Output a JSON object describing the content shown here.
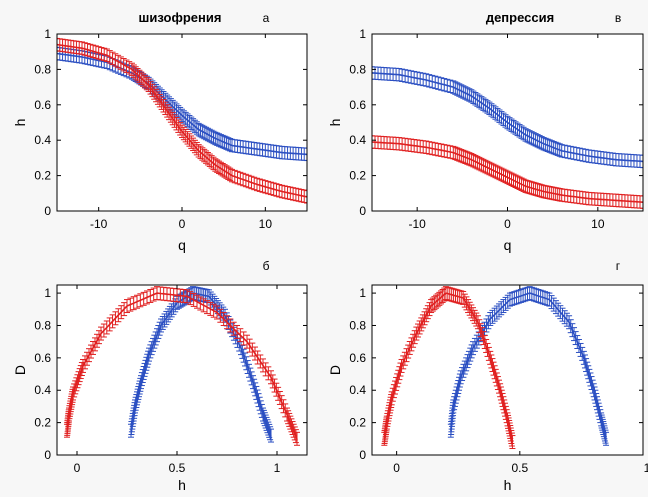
{
  "chart_data": [
    {
      "id": "a",
      "type": "line",
      "title": "шизофрения",
      "panel_label": "а",
      "xlabel": "q",
      "ylabel": "h",
      "xlim": [
        -15,
        15
      ],
      "ylim": [
        0,
        1
      ],
      "xticks": [
        -10,
        0,
        10
      ],
      "xtick_labels": [
        "-10",
        "0",
        "10"
      ],
      "yticks": [
        0,
        0.2,
        0.4,
        0.6,
        0.8,
        1
      ],
      "ytick_labels": [
        "0",
        "0.2",
        "0.4",
        "0.6",
        "0.8",
        "1"
      ],
      "grid": false,
      "error_bars": true,
      "series": [
        {
          "color": "#2b4fc2",
          "err": 0.035,
          "x": [
            -15,
            -12,
            -9,
            -6,
            -4,
            -2,
            0,
            2,
            4,
            6,
            9,
            12,
            15
          ],
          "y": [
            0.89,
            0.87,
            0.84,
            0.78,
            0.72,
            0.63,
            0.54,
            0.46,
            0.41,
            0.37,
            0.35,
            0.33,
            0.32
          ]
        },
        {
          "color": "#e02020",
          "err": 0.035,
          "x": [
            -15,
            -12,
            -9,
            -6,
            -4,
            -2,
            0,
            2,
            4,
            6,
            9,
            12,
            15
          ],
          "y": [
            0.94,
            0.92,
            0.88,
            0.8,
            0.71,
            0.58,
            0.45,
            0.34,
            0.26,
            0.2,
            0.15,
            0.11,
            0.08
          ]
        }
      ]
    },
    {
      "id": "v",
      "type": "line",
      "title": "депрессия",
      "panel_label": "в",
      "xlabel": "q",
      "ylabel": "h",
      "xlim": [
        -15,
        15
      ],
      "ylim": [
        0,
        1
      ],
      "xticks": [
        -10,
        0,
        10
      ],
      "xtick_labels": [
        "-10",
        "0",
        "10"
      ],
      "yticks": [
        0,
        0.2,
        0.4,
        0.6,
        0.8,
        1
      ],
      "ytick_labels": [
        "0",
        "0.2",
        "0.4",
        "0.6",
        "0.8",
        "1"
      ],
      "grid": false,
      "error_bars": true,
      "series": [
        {
          "color": "#2b4fc2",
          "err": 0.035,
          "x": [
            -15,
            -12,
            -9,
            -6,
            -4,
            -2,
            0,
            2,
            4,
            6,
            9,
            12,
            15
          ],
          "y": [
            0.78,
            0.77,
            0.74,
            0.7,
            0.65,
            0.58,
            0.5,
            0.43,
            0.38,
            0.34,
            0.31,
            0.29,
            0.28
          ]
        },
        {
          "color": "#e02020",
          "err": 0.035,
          "x": [
            -15,
            -12,
            -9,
            -6,
            -4,
            -2,
            0,
            2,
            4,
            6,
            9,
            12,
            15
          ],
          "y": [
            0.39,
            0.38,
            0.36,
            0.33,
            0.29,
            0.24,
            0.19,
            0.14,
            0.11,
            0.09,
            0.07,
            0.06,
            0.05
          ]
        }
      ]
    },
    {
      "id": "b",
      "type": "line",
      "title": "",
      "panel_label": "б",
      "xlabel": "h",
      "ylabel": "D",
      "xlim": [
        -0.1,
        1.15
      ],
      "ylim": [
        0,
        1.05
      ],
      "xticks": [
        0,
        0.5,
        1
      ],
      "xtick_labels": [
        "0",
        "0.5",
        "1"
      ],
      "yticks": [
        0,
        0.2,
        0.4,
        0.6,
        0.8,
        1
      ],
      "ytick_labels": [
        "0",
        "0.2",
        "0.4",
        "0.6",
        "0.8",
        "1"
      ],
      "grid": false,
      "error_bars": true,
      "series": [
        {
          "color": "#2b4fc2",
          "err": 0.04,
          "x": [
            0.27,
            0.29,
            0.32,
            0.36,
            0.42,
            0.5,
            0.58,
            0.66,
            0.74,
            0.82,
            0.88,
            0.93,
            0.97
          ],
          "y": [
            0.15,
            0.3,
            0.45,
            0.62,
            0.8,
            0.94,
            1.0,
            0.98,
            0.86,
            0.66,
            0.45,
            0.25,
            0.12
          ]
        },
        {
          "color": "#e02020",
          "err": 0.04,
          "x": [
            -0.05,
            -0.04,
            -0.02,
            0.03,
            0.12,
            0.25,
            0.4,
            0.55,
            0.7,
            0.85,
            0.97,
            1.05,
            1.1
          ],
          "y": [
            0.15,
            0.25,
            0.38,
            0.55,
            0.75,
            0.92,
            1.0,
            0.98,
            0.88,
            0.7,
            0.48,
            0.25,
            0.1
          ]
        }
      ]
    },
    {
      "id": "g",
      "type": "line",
      "title": "",
      "panel_label": "г",
      "xlabel": "h",
      "ylabel": "D",
      "xlim": [
        -0.1,
        1.0
      ],
      "ylim": [
        0,
        1.05
      ],
      "xticks": [
        0,
        0.5
      ],
      "xtick_labels": [
        "0",
        "0.5"
      ],
      "yticks": [
        0,
        0.2,
        0.4,
        0.6,
        0.8,
        1
      ],
      "ytick_labels": [
        "0",
        "0.2",
        "0.4",
        "0.6",
        "0.8",
        "1"
      ],
      "extra_tick_label": "1",
      "grid": false,
      "error_bars": true,
      "series": [
        {
          "color": "#2b4fc2",
          "err": 0.04,
          "x": [
            0.22,
            0.23,
            0.26,
            0.31,
            0.38,
            0.46,
            0.54,
            0.62,
            0.7,
            0.76,
            0.8,
            0.83,
            0.85
          ],
          "y": [
            0.15,
            0.3,
            0.48,
            0.66,
            0.84,
            0.96,
            1.0,
            0.96,
            0.82,
            0.6,
            0.4,
            0.22,
            0.1
          ]
        },
        {
          "color": "#e02020",
          "err": 0.04,
          "x": [
            -0.05,
            -0.04,
            -0.02,
            0.02,
            0.08,
            0.14,
            0.2,
            0.27,
            0.33,
            0.38,
            0.42,
            0.45,
            0.47
          ],
          "y": [
            0.1,
            0.2,
            0.35,
            0.55,
            0.75,
            0.92,
            1.0,
            0.97,
            0.82,
            0.6,
            0.4,
            0.22,
            0.08
          ]
        }
      ]
    }
  ]
}
